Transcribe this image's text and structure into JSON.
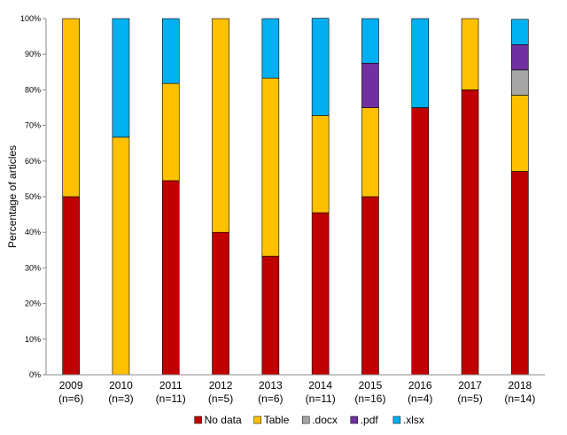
{
  "chart_data": {
    "type": "bar",
    "stacked": true,
    "title": "",
    "xlabel": "",
    "ylabel": "Percentage of articles",
    "ylim": [
      0,
      100
    ],
    "y_tick_labels": [
      "0%",
      "10%",
      "20%",
      "30%",
      "40%",
      "50%",
      "60%",
      "70%",
      "80%",
      "90%",
      "100%"
    ],
    "categories": [
      {
        "year": "2009",
        "n": "(n=6)"
      },
      {
        "year": "2010",
        "n": "(n=3)"
      },
      {
        "year": "2011",
        "n": "(n=11)"
      },
      {
        "year": "2012",
        "n": "(n=5)"
      },
      {
        "year": "2013",
        "n": "(n=6)"
      },
      {
        "year": "2014",
        "n": "(n=11)"
      },
      {
        "year": "2015",
        "n": "(n=16)"
      },
      {
        "year": "2016",
        "n": "(n=4)"
      },
      {
        "year": "2017",
        "n": "(n=5)"
      },
      {
        "year": "2018",
        "n": "(n=14)"
      }
    ],
    "series": [
      {
        "name": "No data",
        "color": "#c00000",
        "values": [
          50,
          0,
          54.5,
          40,
          33.3,
          45.5,
          50,
          75,
          80,
          57.1
        ]
      },
      {
        "name": "Table",
        "color": "#ffc000",
        "values": [
          50,
          66.7,
          27.3,
          60,
          50,
          27.3,
          25,
          0,
          20,
          21.4
        ]
      },
      {
        "name": ".docx",
        "color": "#a6a6a6",
        "values": [
          0,
          0,
          0,
          0,
          0,
          0,
          0,
          0,
          0,
          7.1
        ]
      },
      {
        "name": ".pdf",
        "color": "#7030a0",
        "values": [
          0,
          0,
          0,
          0,
          0,
          0,
          12.5,
          0,
          0,
          7.1
        ]
      },
      {
        "name": ".xlsx",
        "color": "#00b0f0",
        "values": [
          0,
          33.3,
          18.2,
          0,
          16.7,
          27.3,
          12.5,
          25,
          0,
          7.1
        ]
      }
    ],
    "legend_position": "bottom"
  }
}
